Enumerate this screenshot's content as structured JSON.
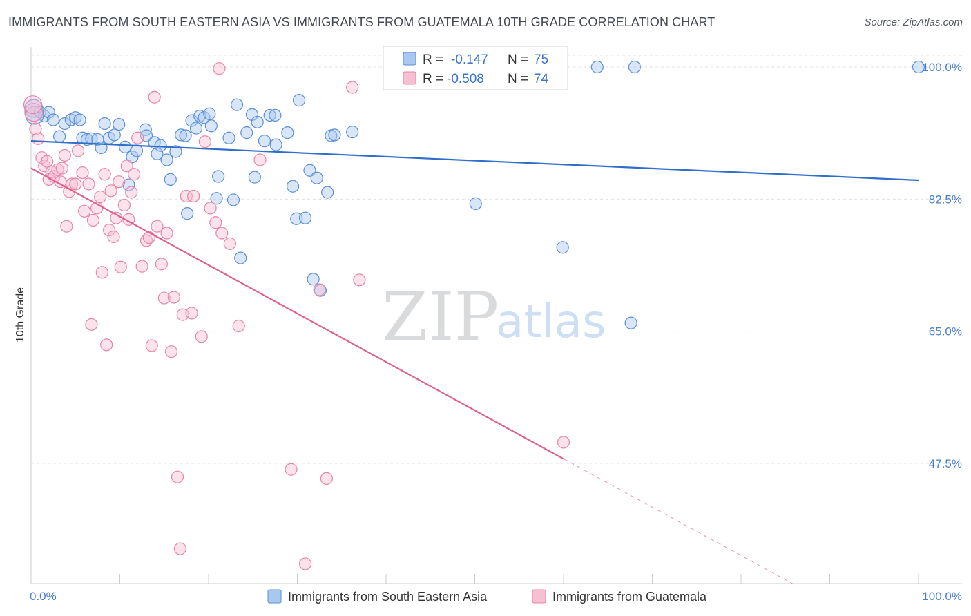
{
  "header": {
    "title": "IMMIGRANTS FROM SOUTH EASTERN ASIA VS IMMIGRANTS FROM GUATEMALA 10TH GRADE CORRELATION CHART",
    "source": "Source: ZipAtlas.com"
  },
  "watermark": {
    "zip": "ZIP",
    "atlas": "atlas"
  },
  "colors": {
    "blue_fill": "#a9c8ef",
    "blue_stroke": "#5b8fd8",
    "blue_line": "#2f6fc8",
    "pink_fill": "#f6bfd2",
    "pink_stroke": "#e884a7",
    "pink_line": "#e0608e",
    "axis_text": "#4a7fcf",
    "grid": "#dde1e6"
  },
  "stats": [
    {
      "r_label": "R =",
      "r_value": "-0.147",
      "n_label": "N =",
      "n_value": "75"
    },
    {
      "r_label": "R =",
      "r_value": "-0.508",
      "n_label": "N =",
      "n_value": "74"
    }
  ],
  "chart_data": {
    "type": "scatter",
    "title": "IMMIGRANTS FROM SOUTH EASTERN ASIA VS IMMIGRANTS FROM GUATEMALA 10TH GRADE CORRELATION CHART",
    "xlabel": "",
    "ylabel": "10th Grade",
    "xlim": [
      0,
      100
    ],
    "ylim": [
      32,
      102
    ],
    "x_tick_labels": [
      "0.0%",
      "100.0%"
    ],
    "y_ticks": [
      47.5,
      65.0,
      82.5,
      100.0
    ],
    "y_tick_labels": [
      "47.5%",
      "65.0%",
      "82.5%",
      "100.0%"
    ],
    "grid": true,
    "legend_position": "bottom-center",
    "series": [
      {
        "name": "Immigrants from South Eastern Asia",
        "color": "#5b8fd8",
        "trend": {
          "x": [
            0,
            100
          ],
          "y": [
            90.2,
            85.0
          ]
        },
        "points": [
          [
            0.3,
            94.5
          ],
          [
            1.0,
            94.0
          ],
          [
            1.5,
            93.5
          ],
          [
            2.0,
            94.0
          ],
          [
            2.5,
            93.0
          ],
          [
            3.2,
            90.8
          ],
          [
            3.8,
            92.5
          ],
          [
            4.5,
            93.0
          ],
          [
            5.0,
            93.3
          ],
          [
            5.5,
            93.0
          ],
          [
            5.8,
            90.6
          ],
          [
            6.3,
            90.4
          ],
          [
            6.8,
            90.5
          ],
          [
            7.5,
            90.4
          ],
          [
            7.9,
            89.3
          ],
          [
            8.3,
            92.5
          ],
          [
            8.8,
            90.6
          ],
          [
            9.4,
            91.0
          ],
          [
            9.9,
            92.4
          ],
          [
            10.6,
            89.4
          ],
          [
            11.0,
            84.4
          ],
          [
            11.4,
            88.1
          ],
          [
            11.9,
            88.9
          ],
          [
            12.9,
            91.7
          ],
          [
            13.0,
            90.9
          ],
          [
            13.9,
            90.0
          ],
          [
            14.2,
            88.5
          ],
          [
            14.6,
            89.6
          ],
          [
            15.3,
            87.7
          ],
          [
            15.7,
            85.1
          ],
          [
            16.3,
            88.8
          ],
          [
            16.9,
            91.0
          ],
          [
            17.4,
            90.9
          ],
          [
            17.6,
            80.6
          ],
          [
            18.1,
            92.9
          ],
          [
            18.6,
            91.9
          ],
          [
            19.0,
            93.5
          ],
          [
            19.5,
            93.3
          ],
          [
            20.1,
            93.8
          ],
          [
            20.3,
            92.2
          ],
          [
            20.9,
            82.6
          ],
          [
            21.1,
            85.5
          ],
          [
            22.3,
            90.6
          ],
          [
            22.8,
            82.4
          ],
          [
            23.2,
            95.0
          ],
          [
            23.6,
            74.7
          ],
          [
            24.3,
            91.3
          ],
          [
            24.9,
            93.7
          ],
          [
            25.2,
            85.4
          ],
          [
            25.5,
            92.7
          ],
          [
            26.3,
            90.2
          ],
          [
            26.9,
            93.6
          ],
          [
            27.5,
            93.6
          ],
          [
            27.6,
            89.7
          ],
          [
            28.9,
            91.3
          ],
          [
            29.5,
            84.2
          ],
          [
            29.9,
            79.9
          ],
          [
            30.2,
            95.6
          ],
          [
            30.9,
            80.0
          ],
          [
            31.4,
            86.3
          ],
          [
            31.8,
            71.9
          ],
          [
            32.2,
            85.3
          ],
          [
            32.6,
            70.4
          ],
          [
            33.4,
            83.4
          ],
          [
            33.8,
            90.9
          ],
          [
            34.2,
            91.0
          ],
          [
            36.2,
            91.4
          ],
          [
            42.5,
            100.3
          ],
          [
            50.1,
            81.9
          ],
          [
            59.9,
            76.1
          ],
          [
            63.8,
            100.0
          ],
          [
            68.0,
            100.0
          ],
          [
            67.6,
            66.1
          ],
          [
            100.0,
            100.0
          ],
          [
            0.4,
            93.6
          ]
        ]
      },
      {
        "name": "Immigrants from Guatemala",
        "color": "#e884a7",
        "trend": {
          "x": [
            0,
            60
          ],
          "y": [
            86.6,
            48.1
          ]
        },
        "trend_dashed": {
          "x": [
            60,
            100
          ],
          "y": [
            48.1,
            22.5
          ]
        },
        "points": [
          [
            0.3,
            94.0
          ],
          [
            0.5,
            91.8
          ],
          [
            0.8,
            90.5
          ],
          [
            1.2,
            88.0
          ],
          [
            1.5,
            86.9
          ],
          [
            1.8,
            87.5
          ],
          [
            2.0,
            85.1
          ],
          [
            2.3,
            86.1
          ],
          [
            2.6,
            85.5
          ],
          [
            3.0,
            86.4
          ],
          [
            3.3,
            84.8
          ],
          [
            3.5,
            86.6
          ],
          [
            3.8,
            88.3
          ],
          [
            4.0,
            78.9
          ],
          [
            4.3,
            83.5
          ],
          [
            4.6,
            84.5
          ],
          [
            5.0,
            84.5
          ],
          [
            5.3,
            88.9
          ],
          [
            5.8,
            86.0
          ],
          [
            6.0,
            80.9
          ],
          [
            6.5,
            84.5
          ],
          [
            6.8,
            65.9
          ],
          [
            7.0,
            79.7
          ],
          [
            7.4,
            81.3
          ],
          [
            7.8,
            82.8
          ],
          [
            8.0,
            72.8
          ],
          [
            8.3,
            85.8
          ],
          [
            8.5,
            63.2
          ],
          [
            8.8,
            78.4
          ],
          [
            9.0,
            83.6
          ],
          [
            9.3,
            77.5
          ],
          [
            9.6,
            80.0
          ],
          [
            9.9,
            84.8
          ],
          [
            10.1,
            73.5
          ],
          [
            10.5,
            81.7
          ],
          [
            10.8,
            86.9
          ],
          [
            11.0,
            79.8
          ],
          [
            11.3,
            83.4
          ],
          [
            11.6,
            85.8
          ],
          [
            12.0,
            90.6
          ],
          [
            12.5,
            73.6
          ],
          [
            13.0,
            77.0
          ],
          [
            13.3,
            77.4
          ],
          [
            13.6,
            63.1
          ],
          [
            13.9,
            96.0
          ],
          [
            14.2,
            78.9
          ],
          [
            14.7,
            73.9
          ],
          [
            15.0,
            69.4
          ],
          [
            15.3,
            78.0
          ],
          [
            15.8,
            62.3
          ],
          [
            16.1,
            69.5
          ],
          [
            16.5,
            45.7
          ],
          [
            16.8,
            36.2
          ],
          [
            17.1,
            67.2
          ],
          [
            17.5,
            82.9
          ],
          [
            18.1,
            67.4
          ],
          [
            18.3,
            82.9
          ],
          [
            19.2,
            64.3
          ],
          [
            19.6,
            90.1
          ],
          [
            20.2,
            81.3
          ],
          [
            20.8,
            79.4
          ],
          [
            21.2,
            99.8
          ],
          [
            21.5,
            78.0
          ],
          [
            22.4,
            76.6
          ],
          [
            23.4,
            65.7
          ],
          [
            25.8,
            87.7
          ],
          [
            29.3,
            46.7
          ],
          [
            30.9,
            34.2
          ],
          [
            32.5,
            70.5
          ],
          [
            33.3,
            45.5
          ],
          [
            36.2,
            97.3
          ],
          [
            37.0,
            71.8
          ],
          [
            60.0,
            50.3
          ],
          [
            0.2,
            95.0
          ]
        ]
      }
    ]
  }
}
